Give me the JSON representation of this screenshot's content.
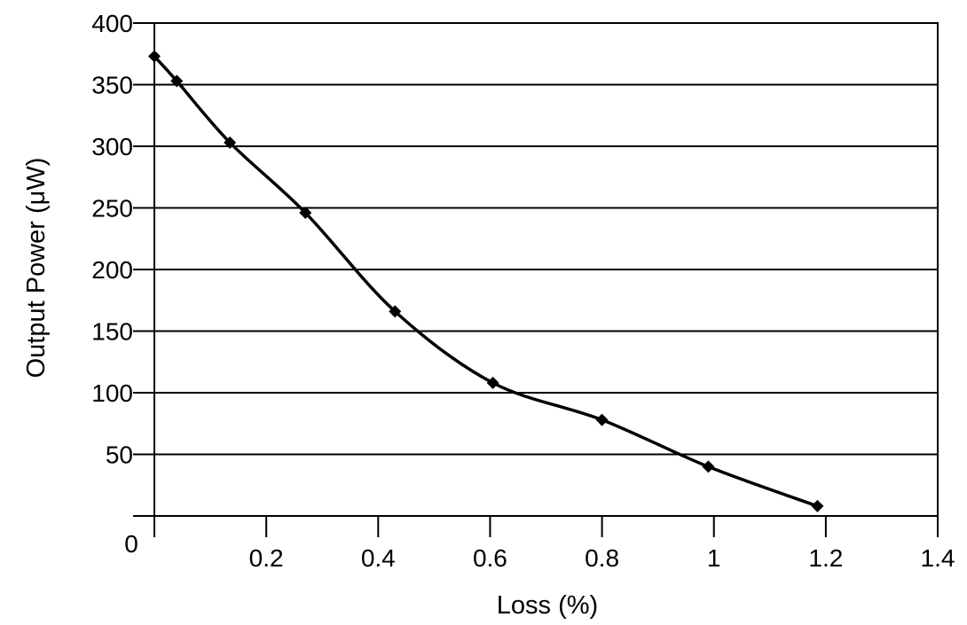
{
  "chart_data": {
    "type": "line",
    "xlabel": "Loss (%)",
    "ylabel": "Output Power (μW)",
    "xlim": [
      0,
      1.4
    ],
    "ylim": [
      0,
      400
    ],
    "x_ticks": [
      0.2,
      0.4,
      0.6,
      0.8,
      1,
      1.2,
      1.4
    ],
    "x_tick_labels": [
      "0.2",
      "0.4",
      "0.6",
      "0.8",
      "1",
      "1.2",
      "1.4"
    ],
    "y_ticks": [
      50,
      100,
      150,
      200,
      250,
      300,
      350,
      400
    ],
    "y_tick_labels": [
      "50",
      "100",
      "150",
      "200",
      "250",
      "300",
      "350",
      "400"
    ],
    "origin_label": "0",
    "grid": "horizontal",
    "legend": "none",
    "marker": "diamond",
    "series_color": "#000000",
    "series": [
      {
        "x": [
          0,
          0.04,
          0.135,
          0.27,
          0.43,
          0.605,
          0.8,
          0.99,
          1.185
        ],
        "values": [
          373,
          353,
          303,
          246,
          166,
          108,
          78,
          40,
          8
        ]
      }
    ]
  }
}
